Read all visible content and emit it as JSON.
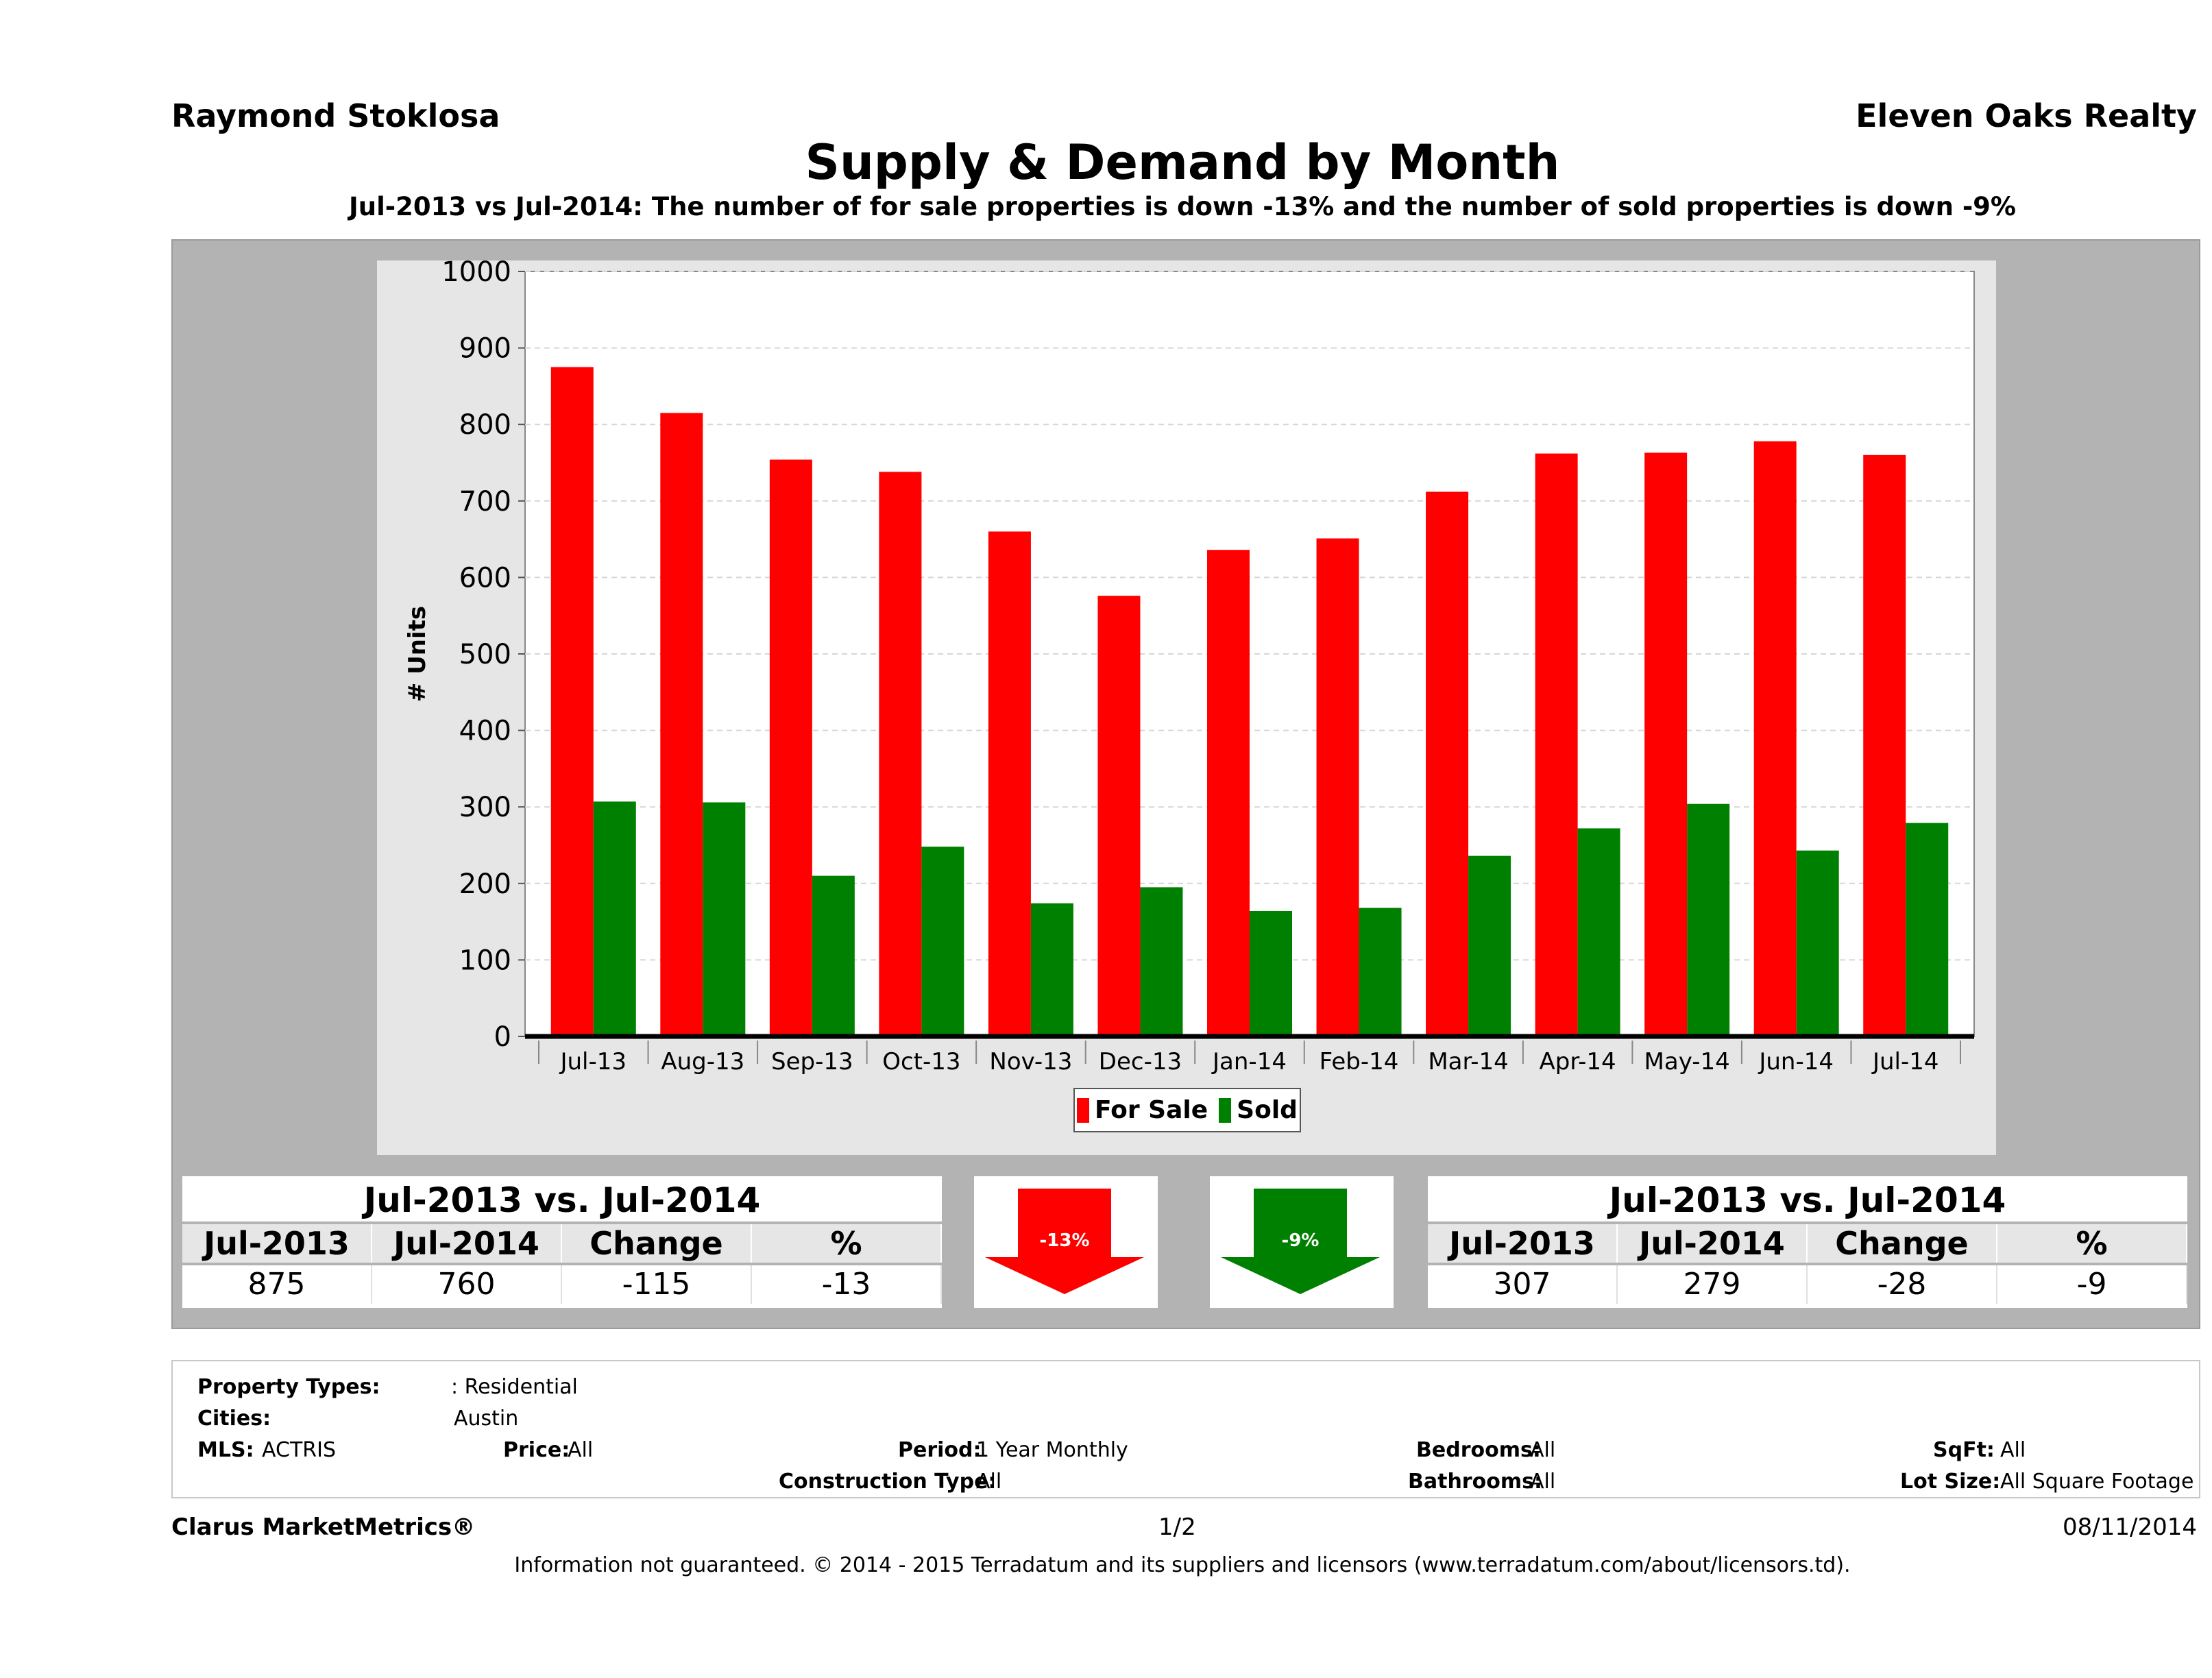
{
  "header": {
    "agent": "Raymond Stoklosa",
    "company": "Eleven Oaks Realty",
    "title": "Supply & Demand by Month",
    "subtitle": "Jul-2013 vs Jul-2014: The number of for sale properties is down -13% and the number of sold properties is down -9%"
  },
  "chart_data": {
    "type": "bar",
    "categories": [
      "Jul-13",
      "Aug-13",
      "Sep-13",
      "Oct-13",
      "Nov-13",
      "Dec-13",
      "Jan-14",
      "Feb-14",
      "Mar-14",
      "Apr-14",
      "May-14",
      "Jun-14",
      "Jul-14"
    ],
    "series": [
      {
        "name": "For Sale",
        "color": "#ff0000",
        "values": [
          875,
          815,
          754,
          738,
          660,
          576,
          636,
          651,
          712,
          762,
          763,
          778,
          760
        ]
      },
      {
        "name": "Sold",
        "color": "#008000",
        "values": [
          307,
          306,
          210,
          248,
          174,
          195,
          164,
          168,
          236,
          272,
          304,
          243,
          279
        ]
      }
    ],
    "xlabel": "",
    "ylabel": "# Units",
    "ylim": [
      0,
      1000
    ],
    "yticks": [
      "0",
      "100",
      "200",
      "300",
      "400",
      "500",
      "600",
      "700",
      "800",
      "900",
      "1000"
    ],
    "grid": true,
    "legend_position": "bottom"
  },
  "summary": {
    "for_sale": {
      "title": "Jul-2013 vs. Jul-2014",
      "headers": [
        "Jul-2013",
        "Jul-2014",
        "Change",
        "%"
      ],
      "values": [
        "875",
        "760",
        "-115",
        "-13"
      ],
      "arrow_label": "-13%",
      "arrow_color": "#ff0000"
    },
    "sold": {
      "title": "Jul-2013 vs. Jul-2014",
      "headers": [
        "Jul-2013",
        "Jul-2014",
        "Change",
        "%"
      ],
      "values": [
        "307",
        "279",
        "-28",
        "-9"
      ],
      "arrow_label": "-9%",
      "arrow_color": "#008000"
    }
  },
  "criteria": {
    "property_types_label": "Property Types:",
    "property_types_value": ": Residential",
    "cities_label": "Cities:",
    "cities_value": "Austin",
    "mls_label": "MLS:",
    "mls_value": "ACTRIS",
    "price_label": "Price:",
    "price_value": "All",
    "period_label": "Period:",
    "period_value": "1 Year Monthly",
    "construction_label": "Construction Type:",
    "construction_value": "All",
    "bedrooms_label": "Bedrooms:",
    "bedrooms_value": "All",
    "bathrooms_label": "Bathrooms:",
    "bathrooms_value": "All",
    "sqft_label": "SqFt:",
    "sqft_value": "All",
    "lotsize_label": "Lot Size:",
    "lotsize_value": "All Square Footage"
  },
  "footer": {
    "brand": "Clarus MarketMetrics®",
    "page": "1/2",
    "date": "08/11/2014",
    "disclaimer": "Information not guaranteed. © 2014 - 2015 Terradatum and its suppliers and licensors (www.terradatum.com/about/licensors.td)."
  }
}
